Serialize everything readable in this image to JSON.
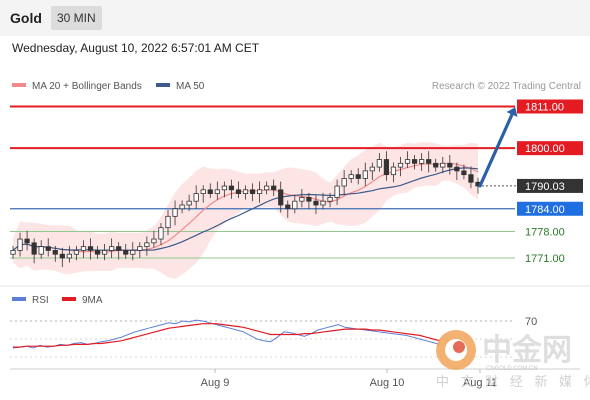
{
  "header": {
    "instrument": "Gold",
    "interval": "30 MIN",
    "timestamp": "Wednesday, August 10, 2022 6:57:01 AM CET"
  },
  "legend": {
    "ma20": "MA 20 + Bollinger Bands",
    "ma50": "MA 50",
    "credit": "Research © 2022 Trading Central",
    "rsi": "RSI",
    "rsi_ma": "9MA"
  },
  "colors": {
    "resistance": "#e31b23",
    "support_line": "#3b6fb5",
    "support_minor": "#8fc98f",
    "ma20": "#f08a8a",
    "ma50": "#3d5a8c",
    "band_fill": "#fde1e1",
    "current_bg": "#333333",
    "support_bg": "#1f6fe0",
    "minor_text": "#2a7a2a",
    "rsi_line": "#5b7fd6",
    "rsi_ma_line": "#e31b23",
    "arrow": "#2b5fa6"
  },
  "chart_data": {
    "type": "candlestick",
    "price_levels": [
      {
        "label": "1811.00",
        "value": 1811.0,
        "kind": "resistance"
      },
      {
        "label": "1800.00",
        "value": 1800.0,
        "kind": "resistance"
      },
      {
        "label": "1790.03",
        "value": 1790.03,
        "kind": "current"
      },
      {
        "label": "1784.00",
        "value": 1784.0,
        "kind": "support"
      },
      {
        "label": "1778.00",
        "value": 1778.0,
        "kind": "minor"
      },
      {
        "label": "1771.00",
        "value": 1771.0,
        "kind": "minor"
      }
    ],
    "y_range": [
      1765,
      1815
    ],
    "x_labels": [
      "Aug 9",
      "Aug 10",
      "Aug 11"
    ],
    "close_series": [
      1773,
      1776,
      1775,
      1772,
      1774,
      1773,
      1772,
      1771,
      1772,
      1773,
      1774,
      1773,
      1772,
      1773,
      1774,
      1773,
      1772,
      1773,
      1774,
      1775,
      1776,
      1779,
      1782,
      1784,
      1785,
      1786,
      1788,
      1789,
      1788,
      1789,
      1790,
      1789,
      1788,
      1789,
      1788,
      1789,
      1790,
      1789,
      1785,
      1784,
      1786,
      1787,
      1786,
      1785,
      1786,
      1787,
      1790,
      1792,
      1793,
      1792,
      1794,
      1795,
      1797,
      1793,
      1795,
      1796,
      1797,
      1796,
      1797,
      1796,
      1795,
      1796,
      1795,
      1794,
      1793,
      1791,
      1790
    ],
    "forecast": {
      "from": 1790.03,
      "to": 1811.0
    },
    "rsi": {
      "level": 70,
      "level_label": "70",
      "values": [
        40,
        41,
        42,
        40,
        43,
        41,
        42,
        44,
        43,
        45,
        46,
        44,
        45,
        47,
        48,
        50,
        52,
        55,
        58,
        60,
        62,
        64,
        66,
        68,
        67,
        70,
        69,
        71,
        70,
        68,
        66,
        64,
        62,
        60,
        58,
        54,
        50,
        48,
        47,
        52,
        58,
        57,
        55,
        53,
        56,
        60,
        62,
        64,
        66,
        63,
        62,
        61,
        60,
        59,
        58,
        57,
        56,
        55,
        54,
        52,
        50,
        48,
        46,
        44
      ],
      "ma_values": [
        41,
        41,
        42,
        42,
        42,
        42,
        42,
        43,
        43,
        44,
        44,
        44,
        45,
        45,
        46,
        47,
        48,
        50,
        52,
        54,
        56,
        58,
        60,
        62,
        63,
        64,
        65,
        66,
        67,
        67,
        67,
        66,
        65,
        64,
        63,
        61,
        59,
        57,
        55,
        55,
        55,
        55,
        55,
        56,
        56,
        57,
        58,
        59,
        60,
        61,
        61,
        61,
        61,
        60,
        60,
        59,
        58,
        57,
        56,
        55,
        54,
        52,
        50,
        48
      ]
    }
  }
}
